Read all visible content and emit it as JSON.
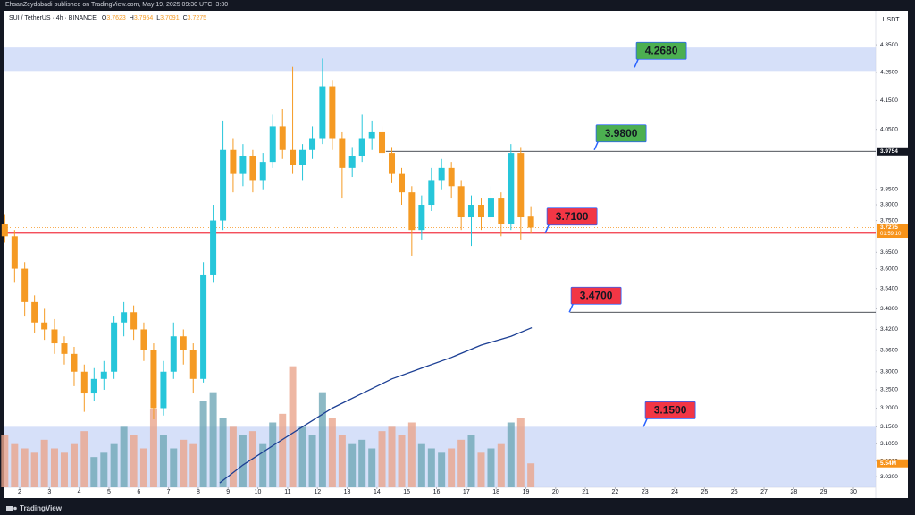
{
  "header": {
    "published": "EhsanZeydabadi published on TradingView.com, May 19, 2025 09:30 UTC+3:30"
  },
  "footer": {
    "brand": "TradingView"
  },
  "chart_data": {
    "type": "candlestick",
    "symbol": "SUI / TetherUS · 4h · BINANCE",
    "ohlc_legend": [
      {
        "key": "O",
        "value": 3.7623
      },
      {
        "key": "H",
        "value": 3.7954
      },
      {
        "key": "L",
        "value": 3.7091
      },
      {
        "key": "C",
        "value": 3.7275
      }
    ],
    "currency": "USDT",
    "log_scale": true,
    "grid": false,
    "xlim": [
      1.49,
      30.75
    ],
    "xticks": [
      2,
      3,
      4,
      5,
      6,
      7,
      8,
      9,
      10,
      11,
      12,
      13,
      14,
      15,
      16,
      17,
      18,
      19,
      20,
      21,
      22,
      23,
      24,
      25,
      26,
      27,
      28,
      29,
      30
    ],
    "ylim": [
      2.993,
      4.477
    ],
    "yticks": [
      {
        "value": 4.35,
        "label": "4.3500"
      },
      {
        "value": 4.25,
        "label": "4.2500"
      },
      {
        "value": 4.15,
        "label": "4.1500"
      },
      {
        "value": 4.05,
        "label": "4.0500"
      },
      {
        "value": 3.85,
        "label": "3.8500"
      },
      {
        "value": 3.8,
        "label": "3.8000"
      },
      {
        "value": 3.75,
        "label": "3.7500"
      },
      {
        "value": 3.65,
        "label": "3.6500"
      },
      {
        "value": 3.6,
        "label": "3.6000"
      },
      {
        "value": 3.54,
        "label": "3.5400"
      },
      {
        "value": 3.48,
        "label": "3.4800"
      },
      {
        "value": 3.42,
        "label": "3.4200"
      },
      {
        "value": 3.36,
        "label": "3.3600"
      },
      {
        "value": 3.3,
        "label": "3.3000"
      },
      {
        "value": 3.25,
        "label": "3.2500"
      },
      {
        "value": 3.2,
        "label": "3.2000"
      },
      {
        "value": 3.15,
        "label": "3.1500"
      },
      {
        "value": 3.105,
        "label": "3.1050"
      },
      {
        "value": 3.06,
        "label": "3.0600"
      },
      {
        "value": 3.02,
        "label": "3.0200"
      }
    ],
    "up_color": "#26c6da",
    "down_color": "#f59a23",
    "candles": {
      "x": [
        1.5,
        1.83,
        2.17,
        2.5,
        2.83,
        3.17,
        3.5,
        3.83,
        4.17,
        4.5,
        4.83,
        5.17,
        5.5,
        5.83,
        6.17,
        6.5,
        6.83,
        7.17,
        7.5,
        7.83,
        8.17,
        8.5,
        8.83,
        9.17,
        9.5,
        9.83,
        10.17,
        10.5,
        10.83,
        11.17,
        11.5,
        11.83,
        12.17,
        12.5,
        12.83,
        13.17,
        13.5,
        13.83,
        14.17,
        14.5,
        14.83,
        15.17,
        15.5,
        15.83,
        16.17,
        16.5,
        16.83,
        17.17,
        17.5,
        17.83,
        18.17,
        18.5,
        18.83,
        19.17
      ],
      "open": [
        3.74,
        3.7,
        3.6,
        3.5,
        3.44,
        3.42,
        3.38,
        3.35,
        3.3,
        3.24,
        3.28,
        3.3,
        3.44,
        3.47,
        3.42,
        3.36,
        3.2,
        3.3,
        3.4,
        3.36,
        3.28,
        3.58,
        3.75,
        3.98,
        3.9,
        3.96,
        3.88,
        3.94,
        4.06,
        3.98,
        3.93,
        3.98,
        4.02,
        4.2,
        4.02,
        3.92,
        3.96,
        4.02,
        4.04,
        3.97,
        3.9,
        3.84,
        3.72,
        3.8,
        3.88,
        3.92,
        3.86,
        3.76,
        3.8,
        3.76,
        3.82,
        3.74,
        3.97,
        3.7623
      ],
      "high": [
        3.77,
        3.72,
        3.62,
        3.52,
        3.48,
        3.45,
        3.4,
        3.37,
        3.32,
        3.31,
        3.33,
        3.46,
        3.5,
        3.49,
        3.44,
        3.38,
        3.33,
        3.44,
        3.42,
        3.38,
        3.62,
        3.8,
        4.08,
        4.02,
        4.0,
        3.98,
        3.97,
        4.1,
        4.12,
        4.27,
        4.0,
        4.06,
        4.3,
        4.22,
        4.04,
        3.99,
        4.1,
        4.08,
        4.06,
        3.99,
        3.92,
        3.86,
        3.83,
        3.92,
        3.95,
        3.94,
        3.88,
        3.83,
        3.82,
        3.86,
        3.84,
        4.0,
        3.99,
        3.7954
      ],
      "low": [
        3.68,
        3.56,
        3.46,
        3.41,
        3.39,
        3.35,
        3.32,
        3.26,
        3.19,
        3.22,
        3.25,
        3.28,
        3.4,
        3.39,
        3.33,
        3.17,
        3.18,
        3.28,
        3.32,
        3.24,
        3.27,
        3.56,
        3.72,
        3.84,
        3.86,
        3.84,
        3.85,
        3.92,
        3.95,
        3.9,
        3.88,
        3.95,
        4.0,
        3.98,
        3.82,
        3.89,
        3.94,
        3.98,
        3.94,
        3.87,
        3.8,
        3.64,
        3.69,
        3.78,
        3.85,
        3.82,
        3.72,
        3.67,
        3.72,
        3.74,
        3.7,
        3.72,
        3.69,
        3.7091
      ],
      "close": [
        3.7,
        3.6,
        3.5,
        3.44,
        3.42,
        3.38,
        3.35,
        3.3,
        3.24,
        3.28,
        3.3,
        3.44,
        3.47,
        3.42,
        3.36,
        3.2,
        3.3,
        3.4,
        3.36,
        3.28,
        3.58,
        3.75,
        3.98,
        3.9,
        3.96,
        3.88,
        3.94,
        4.06,
        3.98,
        3.93,
        3.98,
        4.02,
        4.2,
        4.02,
        3.92,
        3.96,
        4.02,
        4.04,
        3.97,
        3.9,
        3.84,
        3.72,
        3.8,
        3.88,
        3.92,
        3.86,
        3.76,
        3.8,
        3.76,
        3.82,
        3.74,
        3.97,
        3.76,
        3.7275
      ]
    },
    "volume": {
      "values": [
        12,
        10,
        9,
        8,
        11,
        9,
        8,
        10,
        13,
        7,
        8,
        10,
        14,
        12,
        9,
        18,
        12,
        9,
        11,
        10,
        20,
        22,
        16,
        14,
        12,
        13,
        10,
        15,
        17,
        28,
        14,
        12,
        22,
        16,
        12,
        10,
        11,
        9,
        13,
        14,
        12,
        15,
        10,
        9,
        8,
        9,
        11,
        12,
        8,
        9,
        10,
        15,
        16,
        5.54
      ],
      "lim": [
        0,
        30
      ],
      "up_color": "#6fa8b6",
      "down_color": "#eaa58c"
    },
    "moving_average": {
      "color": "#1c3f94",
      "x": [
        8.72,
        9.5,
        10.5,
        11.5,
        12.5,
        13.5,
        14.5,
        15.5,
        16.5,
        17.5,
        18.5,
        19.2
      ],
      "values": [
        3.004,
        3.05,
        3.1,
        3.15,
        3.2,
        3.24,
        3.28,
        3.31,
        3.34,
        3.375,
        3.4,
        3.425
      ]
    },
    "zones": [
      {
        "top": 4.34,
        "bottom": 4.255,
        "color": "#c8d5f7"
      },
      {
        "top": 3.15,
        "color": "#c8d5f7"
      }
    ],
    "levels": [
      {
        "value": 3.71,
        "color": "#f23645"
      },
      {
        "value": 3.9754,
        "from": 14.3,
        "color": "#131722"
      },
      {
        "value": 3.47,
        "from": 20.49,
        "color": "#131722"
      }
    ],
    "annotations": [
      {
        "value": 4.268,
        "label": "4.2680",
        "x": 22.65,
        "color": "#4caf50"
      },
      {
        "value": 3.98,
        "label": "3.9800",
        "x": 21.3,
        "color": "#4caf50"
      },
      {
        "value": 3.71,
        "label": "3.7100",
        "x": 19.65,
        "color": "#f23645"
      },
      {
        "value": 3.47,
        "label": "3.4700",
        "x": 20.46,
        "color": "#f23645"
      },
      {
        "value": 3.15,
        "label": "3.1500",
        "x": 22.95,
        "color": "#f23645"
      }
    ],
    "price_tags": [
      {
        "value": 3.9754,
        "label": "3.9754",
        "color": "#131722"
      },
      {
        "value": 3.7275,
        "label": "3.7275",
        "sublabel": "01:59:10",
        "color": "#f7931a",
        "dotted": true
      }
    ],
    "volume_tag": {
      "value": 5.54,
      "label": "5.54M",
      "color": "#f7931a"
    }
  }
}
